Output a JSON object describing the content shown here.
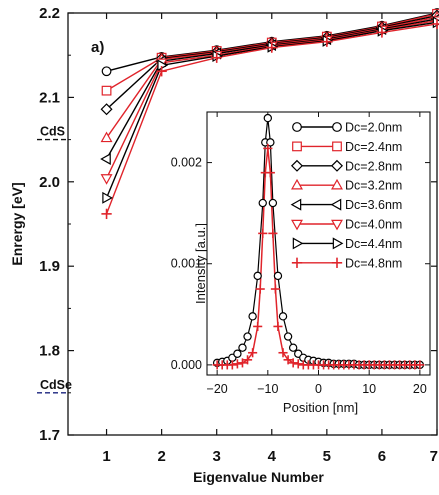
{
  "chart_data": [
    {
      "type": "line",
      "panel_label": "a)",
      "xlabel": "Eigenvalue Number",
      "ylabel": "Enrergy [eV]",
      "xlim": [
        0.3,
        7
      ],
      "ylim": [
        1.7,
        2.2
      ],
      "x_ticks": [
        "1",
        "2",
        "3",
        "4",
        "5",
        "6",
        "7"
      ],
      "y_ticks": [
        "1.7",
        "1.8",
        "1.9",
        "2.0",
        "2.1",
        "2.2"
      ],
      "x": [
        1,
        2,
        3,
        4,
        5,
        6,
        7
      ],
      "reference_lines": [
        {
          "label": "CdS",
          "y": 2.05,
          "color": "#111111"
        },
        {
          "label": "CdSe",
          "y": 1.75,
          "color": "#1a237e"
        }
      ],
      "series": [
        {
          "name": "Dc=2.0nm",
          "marker": "circle",
          "color": "#000000",
          "values": [
            2.131,
            2.148,
            2.156,
            2.166,
            2.173,
            2.185,
            2.2
          ]
        },
        {
          "name": "Dc=2.4nm",
          "marker": "square",
          "color": "#e0242b",
          "values": [
            2.108,
            2.147,
            2.155,
            2.165,
            2.172,
            2.184,
            2.199
          ]
        },
        {
          "name": "Dc=2.8nm",
          "marker": "diamond",
          "color": "#000000",
          "values": [
            2.086,
            2.146,
            2.154,
            2.164,
            2.171,
            2.183,
            2.197
          ]
        },
        {
          "name": "Dc=3.2nm",
          "marker": "triangle-up",
          "color": "#e0242b",
          "values": [
            2.052,
            2.145,
            2.153,
            2.163,
            2.17,
            2.182,
            2.195
          ]
        },
        {
          "name": "Dc=3.6nm",
          "marker": "triangle-left",
          "color": "#000000",
          "values": [
            2.027,
            2.143,
            2.152,
            2.162,
            2.169,
            2.181,
            2.193
          ]
        },
        {
          "name": "Dc=4.0nm",
          "marker": "triangle-down",
          "color": "#e0242b",
          "values": [
            2.004,
            2.141,
            2.15,
            2.161,
            2.168,
            2.18,
            2.191
          ]
        },
        {
          "name": "Dc=4.4nm",
          "marker": "triangle-right",
          "color": "#000000",
          "values": [
            1.981,
            2.138,
            2.149,
            2.16,
            2.167,
            2.179,
            2.189
          ]
        },
        {
          "name": "Dc=4.8nm",
          "marker": "plus",
          "color": "#e0242b",
          "values": [
            1.962,
            2.131,
            2.147,
            2.159,
            2.166,
            2.177,
            2.187
          ]
        }
      ],
      "legend": "inside, right"
    },
    {
      "type": "line",
      "role": "inset",
      "xlabel": "Position [nm]",
      "ylabel": "Intensity [a.u.]",
      "xlim": [
        -22,
        22
      ],
      "ylim": [
        -0.0001,
        0.0025
      ],
      "x_ticks": [
        "−20",
        "−10",
        "0",
        "10",
        "20"
      ],
      "y_ticks": [
        "0.000",
        "0.001",
        "0.002"
      ],
      "series": [
        {
          "name": "Dc=2.0nm",
          "marker": "circle",
          "color": "#000000",
          "x": [
            -20,
            -19,
            -18,
            -17,
            -16,
            -15,
            -14,
            -13,
            -12,
            -11,
            -10.5,
            -10,
            -9.5,
            -9,
            -8,
            -7,
            -6,
            -5,
            -4,
            -3,
            -2,
            -1,
            0,
            1,
            2,
            3,
            4,
            5,
            6,
            7,
            8,
            9,
            10,
            11,
            12,
            13,
            14,
            15,
            16,
            17,
            18,
            19,
            20
          ],
          "values": [
            2e-05,
            3e-05,
            4e-05,
            7e-05,
            0.00011,
            0.00017,
            0.00028,
            0.00048,
            0.00088,
            0.0016,
            0.0022,
            0.00244,
            0.0022,
            0.0016,
            0.00088,
            0.00048,
            0.00028,
            0.00017,
            0.00011,
            7e-05,
            5e-05,
            4e-05,
            3e-05,
            2e-05,
            2e-05,
            1e-05,
            1e-05,
            1e-05,
            1e-05,
            1e-05,
            0.0,
            0.0,
            0.0,
            0.0,
            0.0,
            0.0,
            0.0,
            0.0,
            0.0,
            0.0,
            0.0,
            0.0,
            0.0
          ]
        },
        {
          "name": "Dc=4.8nm",
          "marker": "plus",
          "color": "#e0242b",
          "x": [
            -20,
            -19,
            -18,
            -17,
            -16,
            -15,
            -14,
            -13,
            -12,
            -11.5,
            -11,
            -10.5,
            -10,
            -9.5,
            -9,
            -8.5,
            -8,
            -7,
            -6,
            -5,
            -4,
            -3,
            -2,
            -1,
            0,
            1,
            2,
            3,
            4,
            5,
            6,
            7,
            8,
            9,
            10,
            11,
            12,
            13,
            14,
            15,
            16,
            17,
            18,
            19,
            20
          ],
          "values": [
            0.0,
            0.0,
            0.0,
            0.0,
            1e-05,
            2e-05,
            5e-05,
            0.00012,
            0.00038,
            0.00075,
            0.0013,
            0.0019,
            0.00214,
            0.0019,
            0.0013,
            0.00075,
            0.00038,
            0.00012,
            5e-05,
            2e-05,
            1e-05,
            0.0,
            0.0,
            0.0,
            0.0,
            0.0,
            0.0,
            0.0,
            0.0,
            0.0,
            0.0,
            0.0,
            0.0,
            0.0,
            0.0,
            0.0,
            0.0,
            0.0,
            0.0,
            0.0,
            0.0,
            0.0,
            0.0,
            0.0,
            0.0
          ]
        }
      ]
    }
  ]
}
